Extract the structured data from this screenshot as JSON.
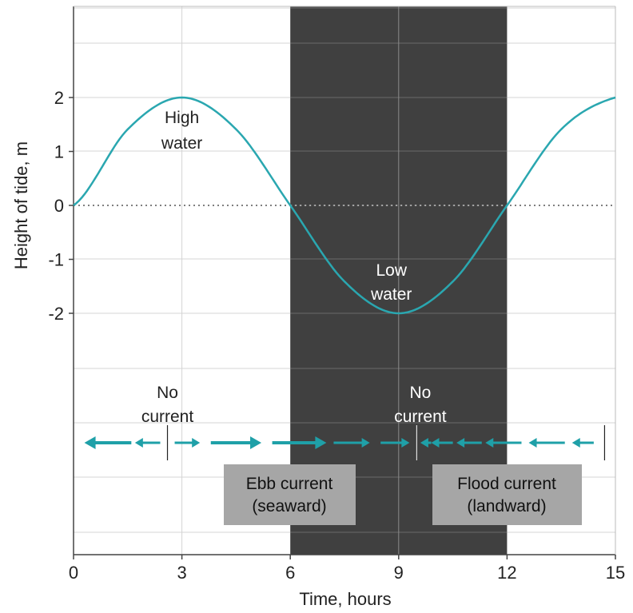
{
  "chart_data": {
    "type": "line",
    "title": "",
    "xlabel": "Time, hours",
    "ylabel": "Height of tide, m",
    "xlim": [
      0,
      15
    ],
    "ylim": [
      -2,
      2
    ],
    "x_ticks": [
      "0",
      "3",
      "6",
      "9",
      "12",
      "15"
    ],
    "y_ticks": [
      "2",
      "1",
      "0",
      "-1",
      "-2"
    ],
    "grid": true,
    "shaded_region": {
      "x_start": 6,
      "x_end": 12,
      "color": "#404040"
    },
    "series": [
      {
        "name": "",
        "color": "#2aa7b0",
        "x": [
          0,
          1.5,
          3,
          4.5,
          6,
          7.5,
          9,
          10.5,
          12,
          13.5,
          15
        ],
        "y": [
          0,
          1.41,
          2,
          1.41,
          0,
          -1.41,
          -2,
          -1.41,
          0,
          1.41,
          2
        ]
      }
    ],
    "annotations": {
      "high_water": "High water",
      "low_water": "Low water",
      "no_current_1": "No current",
      "no_current_2": "No current",
      "ebb_box": "Ebb current (seaward)",
      "flood_box": "Flood current (landward)"
    },
    "current_arrows": [
      {
        "x_start": 1.6,
        "x_end": 0.3,
        "direction": "left"
      },
      {
        "x_start": 2.4,
        "x_end": 1.7,
        "direction": "left"
      },
      {
        "x_start": 2.8,
        "x_end": 3.5,
        "direction": "right"
      },
      {
        "x_start": 3.8,
        "x_end": 5.2,
        "direction": "right"
      },
      {
        "x_start": 5.5,
        "x_end": 7.0,
        "direction": "right"
      },
      {
        "x_start": 7.2,
        "x_end": 8.2,
        "direction": "right"
      },
      {
        "x_start": 8.5,
        "x_end": 9.3,
        "direction": "right"
      },
      {
        "x_start": 9.9,
        "x_end": 9.6,
        "direction": "left"
      },
      {
        "x_start": 10.5,
        "x_end": 9.9,
        "direction": "left"
      },
      {
        "x_start": 11.3,
        "x_end": 10.6,
        "direction": "left"
      },
      {
        "x_start": 12.4,
        "x_end": 11.4,
        "direction": "left"
      },
      {
        "x_start": 13.6,
        "x_end": 12.6,
        "direction": "left"
      },
      {
        "x_start": 14.4,
        "x_end": 13.8,
        "direction": "left"
      }
    ],
    "slack_marks": [
      2.6,
      9.5,
      14.7
    ]
  }
}
